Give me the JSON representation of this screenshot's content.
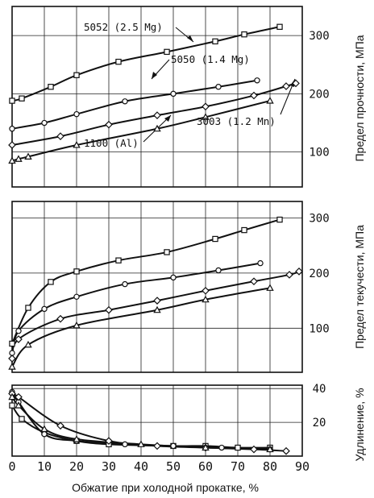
{
  "x_axis": {
    "label": "Обжатие при холодной прокатке, %",
    "ticks": [
      "0",
      "10",
      "20",
      "30",
      "40",
      "50",
      "60",
      "70",
      "80",
      "90"
    ],
    "range": [
      0,
      90
    ],
    "grid": true
  },
  "chart_data": [
    {
      "type": "line",
      "title": "",
      "xlabel": "",
      "ylabel": "Предел прочности, МПа",
      "yticks": [
        "100",
        "200",
        "300"
      ],
      "ylim": [
        40,
        350
      ],
      "grid": true,
      "series": [
        {
          "name": "5052 (2.5 Mg)",
          "marker": "square",
          "x": [
            0,
            3,
            12,
            20,
            33,
            48,
            63,
            72,
            83
          ],
          "y": [
            188,
            192,
            212,
            232,
            255,
            272,
            290,
            302,
            315
          ]
        },
        {
          "name": "5050 (1.4 Mg)",
          "marker": "circle",
          "x": [
            0,
            10,
            20,
            35,
            50,
            64,
            76
          ],
          "y": [
            140,
            150,
            165,
            187,
            200,
            212,
            223
          ]
        },
        {
          "name": "3003 (1.2 Mn)",
          "marker": "diamond",
          "x": [
            0,
            15,
            30,
            45,
            60,
            75,
            85,
            88
          ],
          "y": [
            112,
            127,
            147,
            163,
            178,
            197,
            213,
            218
          ]
        },
        {
          "name": "1100 (Al)",
          "marker": "triangle",
          "x": [
            0,
            2,
            5,
            20,
            45,
            60,
            80
          ],
          "y": [
            85,
            88,
            92,
            112,
            140,
            160,
            188
          ]
        }
      ]
    },
    {
      "type": "line",
      "title": "",
      "xlabel": "",
      "ylabel": "Предел текучести, МПа",
      "yticks": [
        "100",
        "200",
        "300"
      ],
      "ylim": [
        20,
        330
      ],
      "grid": true,
      "series": [
        {
          "name": "5052 (2.5 Mg)",
          "marker": "square",
          "x": [
            0,
            5,
            12,
            20,
            33,
            48,
            63,
            72,
            83
          ],
          "y": [
            72,
            137,
            184,
            203,
            223,
            238,
            262,
            278,
            297
          ]
        },
        {
          "name": "5050 (1.4 Mg)",
          "marker": "circle",
          "x": [
            0,
            2,
            10,
            20,
            35,
            50,
            64,
            77
          ],
          "y": [
            55,
            95,
            135,
            157,
            180,
            192,
            205,
            218
          ]
        },
        {
          "name": "3003 (1.2 Mn)",
          "marker": "diamond",
          "x": [
            0,
            2,
            15,
            30,
            45,
            60,
            75,
            86,
            89
          ],
          "y": [
            45,
            80,
            117,
            133,
            150,
            168,
            185,
            197,
            203
          ]
        },
        {
          "name": "1100 (Al)",
          "marker": "triangle",
          "x": [
            0,
            5,
            20,
            45,
            60,
            80
          ],
          "y": [
            30,
            70,
            105,
            133,
            152,
            173
          ]
        }
      ]
    },
    {
      "type": "line",
      "title": "",
      "xlabel": "",
      "ylabel": "Удлинение, %",
      "yticks": [
        "20",
        "40"
      ],
      "ylim": [
        0,
        42
      ],
      "grid": true,
      "series": [
        {
          "name": "5052 (2.5 Mg)",
          "marker": "square",
          "x": [
            0,
            3,
            10,
            20,
            30,
            50,
            60,
            70,
            80
          ],
          "y": [
            30,
            22,
            14,
            9,
            7,
            6,
            6,
            5,
            5
          ]
        },
        {
          "name": "5050 (1.4 Mg)",
          "marker": "circle",
          "x": [
            0,
            2,
            10,
            20,
            35,
            50,
            65,
            80
          ],
          "y": [
            38,
            32,
            13,
            9,
            7,
            6,
            5,
            4
          ]
        },
        {
          "name": "3003 (1.2 Mn)",
          "marker": "diamond",
          "x": [
            0,
            2,
            15,
            30,
            45,
            60,
            75,
            85
          ],
          "y": [
            37,
            35,
            18,
            9,
            6,
            5,
            4,
            3
          ]
        },
        {
          "name": "1100 (Al)",
          "marker": "triangle",
          "x": [
            0,
            2,
            10,
            20,
            40,
            60,
            80
          ],
          "y": [
            35,
            30,
            16,
            10,
            7,
            5,
            4
          ]
        }
      ]
    }
  ]
}
